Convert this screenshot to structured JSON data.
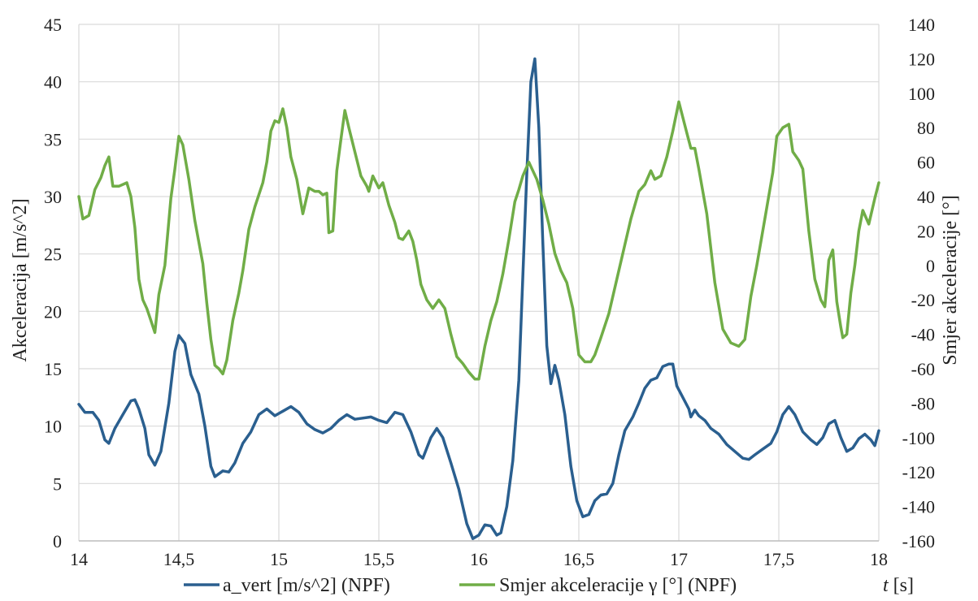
{
  "chart_data": {
    "type": "line",
    "xlabel_var": "t",
    "xlabel_unit": " [s]",
    "ylabel": "Akceleracija  [m/s^2]",
    "y2label": "Smjer akceleracije  [°]",
    "xlim": [
      14,
      18
    ],
    "ylim": [
      0,
      45
    ],
    "y2lim": [
      -160,
      140
    ],
    "x_ticks": [
      "14",
      "14,5",
      "15",
      "15,5",
      "16",
      "16,5",
      "17",
      "17,5",
      "18"
    ],
    "y_ticks": [
      "0",
      "5",
      "10",
      "15",
      "20",
      "25",
      "30",
      "35",
      "40",
      "45"
    ],
    "y2_ticks": [
      "-160",
      "-140",
      "-120",
      "-100",
      "-80",
      "-60",
      "-40",
      "-20",
      "0",
      "20",
      "40",
      "60",
      "80",
      "100",
      "120",
      "140"
    ],
    "grid": true,
    "legend_position": "bottom",
    "series": [
      {
        "name": "a_vert [m/s^2] (NPF)",
        "axis": "left",
        "color": "#2a5f8f",
        "points": [
          [
            14.0,
            11.9
          ],
          [
            14.03,
            11.2
          ],
          [
            14.07,
            11.2
          ],
          [
            14.1,
            10.5
          ],
          [
            14.13,
            8.8
          ],
          [
            14.15,
            8.5
          ],
          [
            14.18,
            9.8
          ],
          [
            14.22,
            11.0
          ],
          [
            14.26,
            12.2
          ],
          [
            14.28,
            12.3
          ],
          [
            14.3,
            11.5
          ],
          [
            14.33,
            9.8
          ],
          [
            14.35,
            7.5
          ],
          [
            14.38,
            6.6
          ],
          [
            14.41,
            7.8
          ],
          [
            14.45,
            12.0
          ],
          [
            14.48,
            16.5
          ],
          [
            14.5,
            17.9
          ],
          [
            14.53,
            17.2
          ],
          [
            14.56,
            14.5
          ],
          [
            14.6,
            12.8
          ],
          [
            14.63,
            10.0
          ],
          [
            14.66,
            6.5
          ],
          [
            14.68,
            5.6
          ],
          [
            14.72,
            6.1
          ],
          [
            14.75,
            6.0
          ],
          [
            14.78,
            6.8
          ],
          [
            14.82,
            8.5
          ],
          [
            14.86,
            9.5
          ],
          [
            14.9,
            11.0
          ],
          [
            14.94,
            11.5
          ],
          [
            14.98,
            10.9
          ],
          [
            15.02,
            11.3
          ],
          [
            15.06,
            11.7
          ],
          [
            15.1,
            11.2
          ],
          [
            15.14,
            10.2
          ],
          [
            15.18,
            9.7
          ],
          [
            15.22,
            9.4
          ],
          [
            15.26,
            9.8
          ],
          [
            15.3,
            10.5
          ],
          [
            15.34,
            11.0
          ],
          [
            15.38,
            10.6
          ],
          [
            15.42,
            10.7
          ],
          [
            15.46,
            10.8
          ],
          [
            15.5,
            10.5
          ],
          [
            15.54,
            10.3
          ],
          [
            15.58,
            11.2
          ],
          [
            15.62,
            11.0
          ],
          [
            15.66,
            9.5
          ],
          [
            15.7,
            7.5
          ],
          [
            15.72,
            7.2
          ],
          [
            15.76,
            9.0
          ],
          [
            15.79,
            9.8
          ],
          [
            15.82,
            9.0
          ],
          [
            15.86,
            6.8
          ],
          [
            15.9,
            4.5
          ],
          [
            15.94,
            1.5
          ],
          [
            15.97,
            0.2
          ],
          [
            16.0,
            0.5
          ],
          [
            16.03,
            1.4
          ],
          [
            16.06,
            1.3
          ],
          [
            16.09,
            0.5
          ],
          [
            16.11,
            0.7
          ],
          [
            16.14,
            3.0
          ],
          [
            16.17,
            7.0
          ],
          [
            16.2,
            14.0
          ],
          [
            16.22,
            23.0
          ],
          [
            16.24,
            32.0
          ],
          [
            16.26,
            40.0
          ],
          [
            16.28,
            42.0
          ],
          [
            16.3,
            36.0
          ],
          [
            16.32,
            26.0
          ],
          [
            16.34,
            17.0
          ],
          [
            16.36,
            13.7
          ],
          [
            16.38,
            15.3
          ],
          [
            16.4,
            14.0
          ],
          [
            16.43,
            11.0
          ],
          [
            16.46,
            6.5
          ],
          [
            16.49,
            3.5
          ],
          [
            16.52,
            2.1
          ],
          [
            16.55,
            2.3
          ],
          [
            16.58,
            3.5
          ],
          [
            16.61,
            4.0
          ],
          [
            16.64,
            4.1
          ],
          [
            16.67,
            5.0
          ],
          [
            16.7,
            7.5
          ],
          [
            16.73,
            9.6
          ],
          [
            16.77,
            10.8
          ],
          [
            16.8,
            12.0
          ],
          [
            16.83,
            13.3
          ],
          [
            16.86,
            14.0
          ],
          [
            16.89,
            14.2
          ],
          [
            16.92,
            15.2
          ],
          [
            16.95,
            15.4
          ],
          [
            16.97,
            15.4
          ],
          [
            16.99,
            13.5
          ],
          [
            17.02,
            12.5
          ],
          [
            17.05,
            11.5
          ],
          [
            17.06,
            10.8
          ],
          [
            17.08,
            11.4
          ],
          [
            17.1,
            10.9
          ],
          [
            17.13,
            10.5
          ],
          [
            17.16,
            9.8
          ],
          [
            17.2,
            9.3
          ],
          [
            17.24,
            8.4
          ],
          [
            17.28,
            7.8
          ],
          [
            17.32,
            7.2
          ],
          [
            17.35,
            7.1
          ],
          [
            17.38,
            7.5
          ],
          [
            17.42,
            8.0
          ],
          [
            17.46,
            8.5
          ],
          [
            17.49,
            9.5
          ],
          [
            17.52,
            11.0
          ],
          [
            17.55,
            11.7
          ],
          [
            17.58,
            11.0
          ],
          [
            17.62,
            9.5
          ],
          [
            17.66,
            8.8
          ],
          [
            17.69,
            8.4
          ],
          [
            17.72,
            9.0
          ],
          [
            17.75,
            10.2
          ],
          [
            17.78,
            10.5
          ],
          [
            17.81,
            9.0
          ],
          [
            17.84,
            7.8
          ],
          [
            17.87,
            8.1
          ],
          [
            17.9,
            8.9
          ],
          [
            17.93,
            9.3
          ],
          [
            17.96,
            8.8
          ],
          [
            17.98,
            8.3
          ],
          [
            18.0,
            9.6
          ]
        ]
      },
      {
        "name": "Smjer akceleracije γ [°] (NPF)",
        "axis": "right",
        "color": "#70ad47",
        "points": [
          [
            14.0,
            40
          ],
          [
            14.02,
            27
          ],
          [
            14.05,
            29
          ],
          [
            14.08,
            44
          ],
          [
            14.11,
            51
          ],
          [
            14.13,
            58
          ],
          [
            14.15,
            63
          ],
          [
            14.17,
            46
          ],
          [
            14.2,
            46
          ],
          [
            14.24,
            48
          ],
          [
            14.26,
            40
          ],
          [
            14.28,
            22
          ],
          [
            14.3,
            -8
          ],
          [
            14.32,
            -20
          ],
          [
            14.34,
            -25
          ],
          [
            14.36,
            -32
          ],
          [
            14.38,
            -39
          ],
          [
            14.4,
            -17
          ],
          [
            14.43,
            0
          ],
          [
            14.46,
            39
          ],
          [
            14.48,
            56
          ],
          [
            14.5,
            75
          ],
          [
            14.52,
            70
          ],
          [
            14.55,
            50
          ],
          [
            14.58,
            26
          ],
          [
            14.62,
            1
          ],
          [
            14.64,
            -22
          ],
          [
            14.66,
            -43
          ],
          [
            14.68,
            -58
          ],
          [
            14.7,
            -60
          ],
          [
            14.72,
            -63
          ],
          [
            14.74,
            -55
          ],
          [
            14.77,
            -32
          ],
          [
            14.8,
            -16
          ],
          [
            14.82,
            -3
          ],
          [
            14.85,
            21
          ],
          [
            14.88,
            34
          ],
          [
            14.92,
            48
          ],
          [
            14.94,
            60
          ],
          [
            14.96,
            78
          ],
          [
            14.98,
            84
          ],
          [
            15.0,
            83
          ],
          [
            15.02,
            91
          ],
          [
            15.04,
            80
          ],
          [
            15.06,
            63
          ],
          [
            15.09,
            50
          ],
          [
            15.12,
            30
          ],
          [
            15.15,
            45
          ],
          [
            15.18,
            43
          ],
          [
            15.2,
            43
          ],
          [
            15.22,
            41
          ],
          [
            15.24,
            42
          ],
          [
            15.25,
            19
          ],
          [
            15.27,
            20
          ],
          [
            15.29,
            55
          ],
          [
            15.31,
            73
          ],
          [
            15.33,
            90
          ],
          [
            15.35,
            80
          ],
          [
            15.38,
            66
          ],
          [
            15.41,
            52
          ],
          [
            15.44,
            46
          ],
          [
            15.45,
            43
          ],
          [
            15.47,
            52
          ],
          [
            15.5,
            45
          ],
          [
            15.52,
            48
          ],
          [
            15.55,
            35
          ],
          [
            15.58,
            25
          ],
          [
            15.6,
            16
          ],
          [
            15.62,
            15
          ],
          [
            15.65,
            20
          ],
          [
            15.67,
            14
          ],
          [
            15.69,
            3
          ],
          [
            15.71,
            -11
          ],
          [
            15.74,
            -20
          ],
          [
            15.77,
            -25
          ],
          [
            15.8,
            -20
          ],
          [
            15.83,
            -25
          ],
          [
            15.86,
            -40
          ],
          [
            15.89,
            -53
          ],
          [
            15.92,
            -57
          ],
          [
            15.95,
            -62
          ],
          [
            15.98,
            -66
          ],
          [
            16.0,
            -66
          ],
          [
            16.03,
            -47
          ],
          [
            16.06,
            -32
          ],
          [
            16.09,
            -21
          ],
          [
            16.12,
            -5
          ],
          [
            16.15,
            15
          ],
          [
            16.18,
            37
          ],
          [
            16.2,
            44
          ],
          [
            16.22,
            52
          ],
          [
            16.25,
            60
          ],
          [
            16.27,
            55
          ],
          [
            16.29,
            50
          ],
          [
            16.32,
            38
          ],
          [
            16.35,
            24
          ],
          [
            16.38,
            7
          ],
          [
            16.41,
            -3
          ],
          [
            16.44,
            -10
          ],
          [
            16.47,
            -25
          ],
          [
            16.5,
            -52
          ],
          [
            16.53,
            -56
          ],
          [
            16.56,
            -56
          ],
          [
            16.58,
            -52
          ],
          [
            16.61,
            -42
          ],
          [
            16.65,
            -28
          ],
          [
            16.7,
            -3
          ],
          [
            16.73,
            12
          ],
          [
            16.76,
            27
          ],
          [
            16.8,
            43
          ],
          [
            16.83,
            47
          ],
          [
            16.86,
            55
          ],
          [
            16.88,
            50
          ],
          [
            16.91,
            52
          ],
          [
            16.94,
            63
          ],
          [
            16.97,
            78
          ],
          [
            17.0,
            95
          ],
          [
            17.02,
            86
          ],
          [
            17.04,
            77
          ],
          [
            17.06,
            68
          ],
          [
            17.08,
            68
          ],
          [
            17.1,
            56
          ],
          [
            17.14,
            30
          ],
          [
            17.18,
            -10
          ],
          [
            17.22,
            -37
          ],
          [
            17.26,
            -45
          ],
          [
            17.3,
            -47
          ],
          [
            17.33,
            -43
          ],
          [
            17.36,
            -18
          ],
          [
            17.39,
            0
          ],
          [
            17.43,
            27
          ],
          [
            17.47,
            54
          ],
          [
            17.49,
            75
          ],
          [
            17.52,
            80
          ],
          [
            17.55,
            82
          ],
          [
            17.57,
            66
          ],
          [
            17.6,
            61
          ],
          [
            17.62,
            56
          ],
          [
            17.65,
            20
          ],
          [
            17.68,
            -8
          ],
          [
            17.71,
            -20
          ],
          [
            17.73,
            -24
          ],
          [
            17.75,
            3
          ],
          [
            17.77,
            9
          ],
          [
            17.79,
            -21
          ],
          [
            17.81,
            -36
          ],
          [
            17.82,
            -42
          ],
          [
            17.84,
            -40
          ],
          [
            17.86,
            -16
          ],
          [
            17.88,
            0
          ],
          [
            17.9,
            20
          ],
          [
            17.92,
            32
          ],
          [
            17.95,
            24
          ],
          [
            17.98,
            39
          ],
          [
            18.0,
            48
          ]
        ]
      }
    ]
  }
}
